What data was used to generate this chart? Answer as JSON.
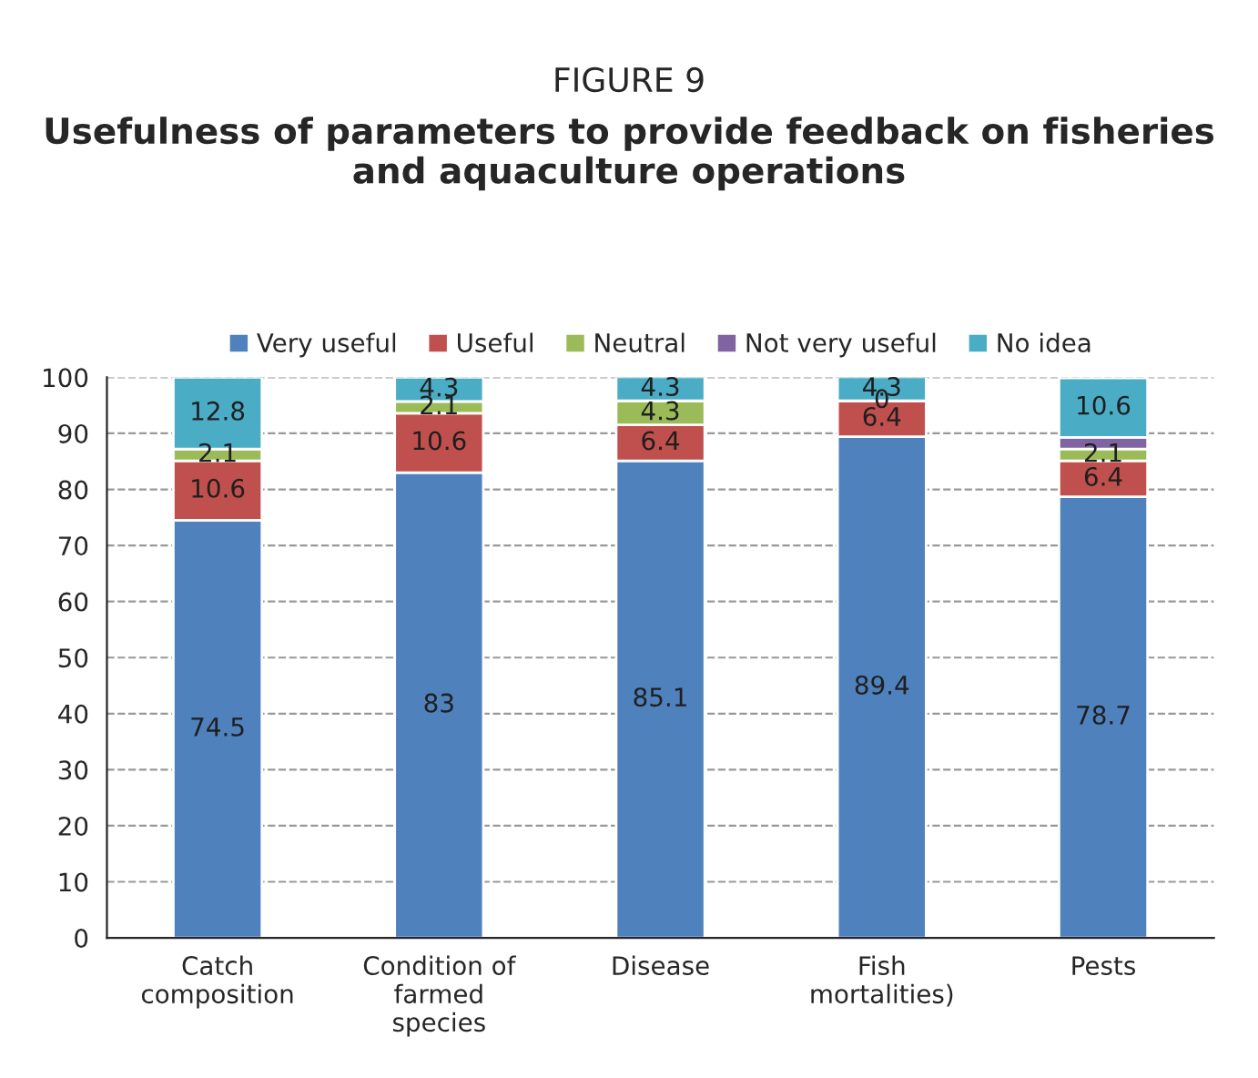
{
  "chart_data": {
    "type": "bar",
    "stacked": true,
    "title": "FIGURE 9",
    "subtitle": "Usefulness of parameters to provide feedback on fisheries and aquaculture operations",
    "categories": [
      "Catch\ncomposition",
      "Condition of\nfarmed\nspecies",
      "Disease",
      "Fish\nmortalities)",
      "Pests"
    ],
    "series": [
      {
        "name": "Very useful",
        "color": "#4f81bd",
        "values": [
          74.5,
          83,
          85.1,
          89.4,
          78.7
        ],
        "value_labels": [
          "74.5",
          "83",
          "85.1",
          "89.4",
          "78.7"
        ]
      },
      {
        "name": "Useful",
        "color": "#c0504d",
        "values": [
          10.6,
          10.6,
          6.4,
          6.4,
          6.4
        ],
        "value_labels": [
          "10.6",
          "10.6",
          "6.4",
          "6.4",
          "6.4"
        ]
      },
      {
        "name": "Neutral",
        "color": "#9bbb59",
        "values": [
          2.1,
          2.1,
          4.3,
          0,
          2.1
        ],
        "value_labels": [
          "2.1",
          "2.1",
          "4.3",
          "0",
          "2.1"
        ]
      },
      {
        "name": "Not very useful",
        "color": "#8064a2",
        "values": [
          0,
          0,
          0,
          0,
          2.1
        ],
        "value_labels": [
          null,
          null,
          null,
          null,
          null
        ]
      },
      {
        "name": "No idea",
        "color": "#4bacc6",
        "values": [
          12.8,
          4.3,
          4.3,
          4.3,
          10.6
        ],
        "value_labels": [
          "12.8",
          "4.3",
          "4.3",
          "4.3",
          "10.6"
        ]
      }
    ],
    "ylim": [
      0,
      100
    ],
    "yticks": [
      0,
      10,
      20,
      30,
      40,
      50,
      60,
      70,
      80,
      90,
      100
    ],
    "grid": "y",
    "legend": "top"
  }
}
